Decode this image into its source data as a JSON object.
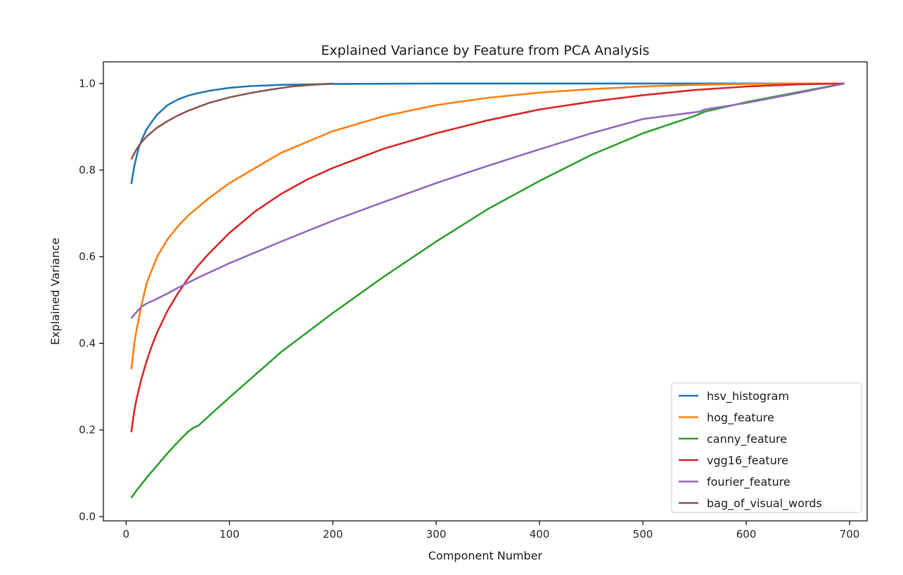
{
  "chart_data": {
    "type": "line",
    "title": "Explained Variance by Feature from PCA Analysis",
    "xlabel": "Component Number",
    "ylabel": "Explained Variance",
    "xlim": [
      -22,
      717
    ],
    "ylim": [
      -0.01,
      1.05
    ],
    "xticks": [
      0,
      100,
      200,
      300,
      400,
      500,
      600,
      700
    ],
    "yticks": [
      0.0,
      0.2,
      0.4,
      0.6,
      0.8,
      1.0
    ],
    "ytick_labels": [
      "0.0",
      "0.2",
      "0.4",
      "0.6",
      "0.8",
      "1.0"
    ],
    "grid": false,
    "legend_position": "lower-right",
    "series": [
      {
        "name": "hsv_histogram",
        "color": "#1f77b4",
        "x": [
          5,
          8,
          12,
          16,
          20,
          25,
          30,
          40,
          50,
          60,
          70,
          80,
          100,
          120,
          150,
          200,
          300,
          400,
          500,
          600,
          695
        ],
        "y": [
          0.768,
          0.81,
          0.85,
          0.875,
          0.895,
          0.912,
          0.928,
          0.95,
          0.963,
          0.972,
          0.978,
          0.983,
          0.99,
          0.994,
          0.997,
          0.999,
          1.0,
          1.0,
          1.0,
          1.0,
          1.0
        ]
      },
      {
        "name": "hog_feature",
        "color": "#ff7f0e",
        "x": [
          5,
          8,
          10,
          15,
          20,
          25,
          30,
          40,
          50,
          60,
          70,
          80,
          100,
          150,
          200,
          250,
          300,
          350,
          400,
          450,
          500,
          550,
          600,
          650,
          695
        ],
        "y": [
          0.34,
          0.4,
          0.43,
          0.49,
          0.54,
          0.57,
          0.6,
          0.64,
          0.67,
          0.695,
          0.715,
          0.735,
          0.77,
          0.84,
          0.89,
          0.925,
          0.95,
          0.967,
          0.979,
          0.987,
          0.993,
          0.997,
          0.999,
          1.0,
          1.0
        ]
      },
      {
        "name": "canny_feature",
        "color": "#2ca02c",
        "x": [
          5,
          10,
          20,
          30,
          40,
          50,
          60,
          65,
          70,
          80,
          100,
          150,
          200,
          250,
          300,
          350,
          400,
          450,
          500,
          550,
          560,
          600,
          650,
          695
        ],
        "y": [
          0.043,
          0.06,
          0.09,
          0.118,
          0.146,
          0.172,
          0.196,
          0.205,
          0.21,
          0.232,
          0.275,
          0.38,
          0.47,
          0.555,
          0.635,
          0.71,
          0.775,
          0.835,
          0.885,
          0.925,
          0.935,
          0.957,
          0.98,
          1.0
        ]
      },
      {
        "name": "vgg16_feature",
        "color": "#d62728",
        "x": [
          5,
          8,
          10,
          15,
          20,
          25,
          30,
          40,
          50,
          60,
          70,
          80,
          100,
          125,
          150,
          175,
          200,
          250,
          300,
          350,
          400,
          450,
          500,
          550,
          600,
          650,
          695
        ],
        "y": [
          0.195,
          0.245,
          0.27,
          0.32,
          0.36,
          0.395,
          0.425,
          0.475,
          0.515,
          0.55,
          0.58,
          0.607,
          0.655,
          0.705,
          0.745,
          0.778,
          0.805,
          0.85,
          0.885,
          0.915,
          0.94,
          0.958,
          0.973,
          0.985,
          0.993,
          0.998,
          1.0
        ]
      },
      {
        "name": "fourier_feature",
        "color": "#9467bd",
        "x": [
          5,
          10,
          15,
          20,
          30,
          40,
          50,
          70,
          100,
          150,
          200,
          250,
          300,
          350,
          400,
          450,
          500,
          555,
          560,
          600,
          650,
          695
        ],
        "y": [
          0.458,
          0.472,
          0.485,
          0.492,
          0.503,
          0.515,
          0.528,
          0.552,
          0.585,
          0.635,
          0.683,
          0.727,
          0.77,
          0.81,
          0.848,
          0.885,
          0.918,
          0.935,
          0.94,
          0.955,
          0.978,
          1.0
        ]
      },
      {
        "name": "bag_of_visual_words",
        "color": "#8c564b",
        "x": [
          5,
          10,
          15,
          20,
          30,
          40,
          50,
          60,
          70,
          80,
          100,
          120,
          140,
          160,
          180,
          200
        ],
        "y": [
          0.825,
          0.848,
          0.865,
          0.878,
          0.898,
          0.913,
          0.926,
          0.937,
          0.946,
          0.955,
          0.968,
          0.978,
          0.986,
          0.993,
          0.997,
          1.0
        ]
      }
    ]
  }
}
